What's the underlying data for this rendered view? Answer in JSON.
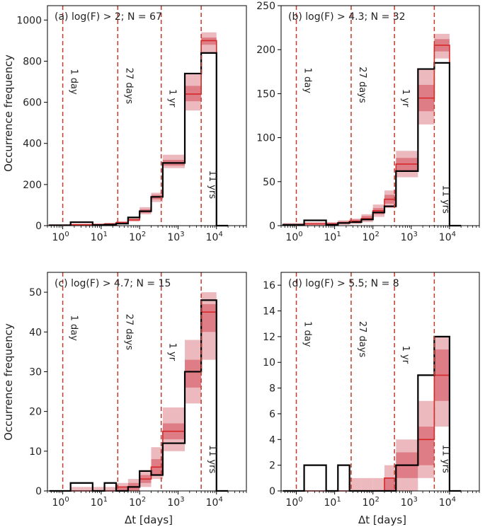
{
  "figure": {
    "ylabel": "Occurrence frequency",
    "xlabel": "Δt [days]"
  },
  "colors": {
    "observed": "#000000",
    "model": "#d62728",
    "band_outer": "#e6a3a8",
    "band_inner": "#d9646e",
    "vline": "#c43a2a"
  },
  "chart_data": [
    {
      "type": "histogram",
      "panel": "a",
      "title": "(a) log(F) > 2; N = 67",
      "x_scale": "log",
      "xlim_days": [
        0.4,
        60000
      ],
      "ylim": [
        0,
        1070
      ],
      "y_ticks": [
        0,
        200,
        400,
        600,
        800,
        1000
      ],
      "bin_edges_days": [
        0.45,
        1.6,
        6.0,
        12.2,
        24.5,
        50,
        100,
        200,
        400,
        1500,
        4000,
        10000,
        20000
      ],
      "observed_counts": [
        2,
        17,
        3,
        5,
        10,
        40,
        70,
        140,
        305,
        740,
        840,
        0
      ],
      "model_median": [
        3,
        5,
        6,
        8,
        15,
        28,
        70,
        140,
        305,
        640,
        900,
        0
      ],
      "band_outer_low": [
        0,
        0,
        2,
        4,
        10,
        20,
        55,
        115,
        280,
        560,
        840,
        0
      ],
      "band_outer_high": [
        6,
        9,
        10,
        14,
        22,
        38,
        90,
        160,
        345,
        740,
        940,
        0
      ],
      "band_inner_low": [
        1,
        2,
        4,
        6,
        13,
        24,
        62,
        128,
        292,
        605,
        880,
        0
      ],
      "band_inner_high": [
        4,
        7,
        8,
        11,
        18,
        32,
        80,
        150,
        320,
        680,
        915,
        0
      ],
      "vlines": [
        {
          "x": 1,
          "label": "1 day",
          "label_y": 700
        },
        {
          "x": 27,
          "label": "27 days",
          "label_y": 680
        },
        {
          "x": 365,
          "label": "1 yr",
          "label_y": 620
        },
        {
          "x": 4000,
          "label": "11 yrs",
          "label_y": 200
        }
      ]
    },
    {
      "type": "histogram",
      "panel": "b",
      "title": "(b) log(F) > 4.3; N = 32",
      "x_scale": "log",
      "xlim_days": [
        0.4,
        60000
      ],
      "ylim": [
        0,
        250
      ],
      "y_ticks": [
        0,
        50,
        100,
        150,
        200,
        250
      ],
      "bin_edges_days": [
        0.45,
        1.6,
        6.0,
        12.2,
        24.5,
        50,
        100,
        200,
        400,
        1500,
        4000,
        10000,
        20000
      ],
      "observed_counts": [
        1,
        6,
        1,
        3,
        4,
        7,
        15,
        22,
        62,
        178,
        185,
        0
      ],
      "model_median": [
        1,
        2,
        2,
        3,
        5,
        8,
        17,
        30,
        70,
        145,
        205,
        0
      ],
      "band_outer_low": [
        0,
        0,
        0,
        1,
        2,
        4,
        10,
        20,
        55,
        115,
        190,
        0
      ],
      "band_outer_high": [
        3,
        4,
        4,
        6,
        8,
        13,
        24,
        40,
        85,
        178,
        218,
        0
      ],
      "band_inner_low": [
        0,
        1,
        1,
        2,
        3,
        6,
        13,
        25,
        62,
        130,
        198,
        0
      ],
      "band_inner_high": [
        2,
        3,
        3,
        5,
        7,
        11,
        20,
        35,
        77,
        160,
        212,
        0
      ],
      "vlines": [
        {
          "x": 1,
          "label": "1 day",
          "label_y": 165
        },
        {
          "x": 27,
          "label": "27 days",
          "label_y": 160
        },
        {
          "x": 365,
          "label": "1 yr",
          "label_y": 145
        },
        {
          "x": 4000,
          "label": "11 yrs",
          "label_y": 30
        }
      ]
    },
    {
      "type": "histogram",
      "panel": "c",
      "title": "(c) log(F) > 4.7; N = 15",
      "x_scale": "log",
      "xlim_days": [
        0.4,
        60000
      ],
      "ylim": [
        0,
        55
      ],
      "y_ticks": [
        0,
        10,
        20,
        30,
        40,
        50
      ],
      "bin_edges_days": [
        0.45,
        1.6,
        6.0,
        12.2,
        24.5,
        50,
        100,
        200,
        400,
        1500,
        4000,
        10000,
        20000
      ],
      "observed_counts": [
        0,
        2,
        0,
        2,
        0,
        1,
        5,
        4,
        12,
        30,
        48,
        0
      ],
      "model_median": [
        0,
        0,
        0,
        0,
        1,
        1,
        3,
        6,
        15,
        30,
        45,
        0
      ],
      "band_outer_low": [
        0,
        0,
        0,
        0,
        0,
        0,
        1,
        3,
        10,
        22,
        33,
        0
      ],
      "band_outer_high": [
        0,
        1,
        1,
        1,
        2,
        3,
        5,
        11,
        21,
        38,
        50,
        0
      ],
      "band_inner_low": [
        0,
        0,
        0,
        0,
        0,
        0,
        2,
        4,
        13,
        26,
        40,
        0
      ],
      "band_inner_high": [
        0,
        0,
        0,
        0,
        1,
        2,
        4,
        8,
        17,
        33,
        47,
        0
      ],
      "vlines": [
        {
          "x": 1,
          "label": "1 day",
          "label_y": 41
        },
        {
          "x": 27,
          "label": "27 days",
          "label_y": 40
        },
        {
          "x": 365,
          "label": "1 yr",
          "label_y": 35
        },
        {
          "x": 4000,
          "label": "11 yrs",
          "label_y": 8
        }
      ]
    },
    {
      "type": "histogram",
      "panel": "d",
      "title": "(d) log(F) > 5.5; N = 8",
      "x_scale": "log",
      "xlim_days": [
        0.4,
        60000
      ],
      "ylim": [
        0,
        17
      ],
      "y_ticks": [
        0,
        2,
        4,
        6,
        8,
        10,
        12,
        14,
        16
      ],
      "bin_edges_days": [
        0.45,
        1.6,
        6.0,
        12.2,
        24.5,
        50,
        100,
        200,
        400,
        1500,
        4000,
        10000,
        20000
      ],
      "observed_counts": [
        0,
        2,
        0,
        2,
        0,
        0,
        0,
        0,
        2,
        9,
        12,
        0
      ],
      "model_median": [
        0,
        0,
        0,
        0,
        0,
        0,
        0,
        1,
        2,
        4,
        9,
        0
      ],
      "band_outer_low": [
        0,
        0,
        0,
        0,
        0,
        0,
        0,
        0,
        0,
        1,
        5,
        0
      ],
      "band_outer_high": [
        0,
        0,
        0,
        0,
        1,
        1,
        1,
        2,
        4,
        7,
        12,
        0
      ],
      "band_inner_low": [
        0,
        0,
        0,
        0,
        0,
        0,
        0,
        0,
        1,
        2,
        7,
        0
      ],
      "band_inner_high": [
        0,
        0,
        0,
        0,
        0,
        0,
        0,
        1,
        3,
        5,
        11,
        0
      ],
      "vlines": [
        {
          "x": 1,
          "label": "1 day",
          "label_y": 12.2
        },
        {
          "x": 27,
          "label": "27 days",
          "label_y": 11.8
        },
        {
          "x": 365,
          "label": "1 yr",
          "label_y": 10.6
        },
        {
          "x": 4000,
          "label": "11 yrs",
          "label_y": 2.5
        }
      ]
    }
  ]
}
